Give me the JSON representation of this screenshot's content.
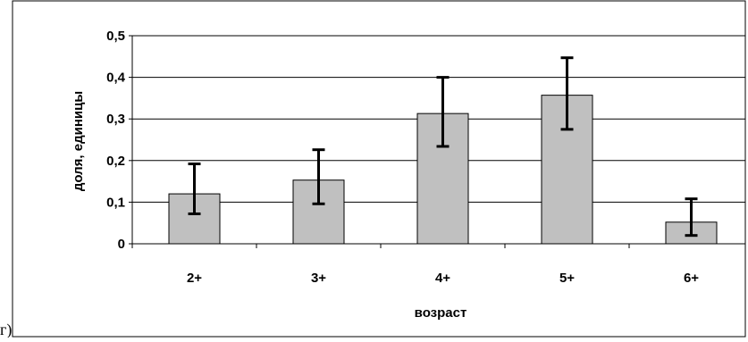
{
  "panel_label": "г)",
  "chart_data": {
    "type": "bar",
    "categories": [
      "2+",
      "3+",
      "4+",
      "5+",
      "6+"
    ],
    "values": [
      0.12,
      0.153,
      0.313,
      0.357,
      0.052
    ],
    "error_low": [
      0.072,
      0.096,
      0.234,
      0.275,
      0.02
    ],
    "error_high": [
      0.192,
      0.226,
      0.4,
      0.447,
      0.108
    ],
    "title": "",
    "xlabel": "возраст",
    "ylabel": "доля, единицы",
    "ylim": [
      0,
      0.5
    ],
    "yticks": [
      "0",
      "0,1",
      "0,2",
      "0,3",
      "0,4",
      "0,5"
    ],
    "ytick_values": [
      0,
      0.1,
      0.2,
      0.3,
      0.4,
      0.5
    ],
    "grid": true,
    "legend": "none",
    "bar_color": "#c0c0c0",
    "bar_edge_color": "#000000",
    "error_bar_color": "#000000"
  }
}
